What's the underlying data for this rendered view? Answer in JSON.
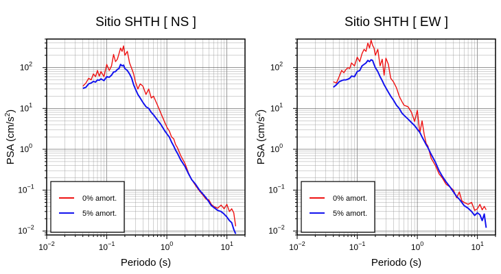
{
  "chart_data": [
    {
      "type": "line",
      "title": "Sitio SHTH [ NS ]",
      "xlabel": "Periodo (s)",
      "ylabel_main": "PSA (cm/s",
      "ylabel_sup": "2",
      "ylabel_tail": ")",
      "xscale": "log",
      "yscale": "log",
      "xlim": [
        0.01,
        20
      ],
      "ylim": [
        0.008,
        500
      ],
      "grid": true,
      "legend_position": "bottom-left",
      "x_ticks": [
        {
          "base": "10",
          "exp": "−2"
        },
        {
          "base": "10",
          "exp": "−1"
        },
        {
          "base": "10",
          "exp": "0"
        },
        {
          "base": "10",
          "exp": "1"
        }
      ],
      "y_ticks": [
        {
          "base": "10",
          "exp": "−2"
        },
        {
          "base": "10",
          "exp": "−1"
        },
        {
          "base": "10",
          "exp": "0"
        },
        {
          "base": "10",
          "exp": "1"
        },
        {
          "base": "10",
          "exp": "2"
        }
      ],
      "series": [
        {
          "name": "0% amort.",
          "color": "#ee1111",
          "x": [
            0.04,
            0.045,
            0.05,
            0.055,
            0.06,
            0.065,
            0.07,
            0.075,
            0.08,
            0.09,
            0.1,
            0.11,
            0.12,
            0.13,
            0.14,
            0.15,
            0.16,
            0.17,
            0.18,
            0.19,
            0.2,
            0.22,
            0.24,
            0.26,
            0.28,
            0.3,
            0.33,
            0.36,
            0.4,
            0.45,
            0.5,
            0.55,
            0.6,
            0.7,
            0.8,
            0.9,
            1.0,
            1.1,
            1.2,
            1.3,
            1.4,
            1.5,
            1.7,
            2.0,
            2.3,
            2.6,
            3.0,
            3.5,
            4.0,
            4.5,
            5.0,
            5.5,
            6.0,
            7.0,
            8.0,
            9.0,
            10.0,
            11.0,
            12.0,
            13.0,
            14.0
          ],
          "y": [
            35,
            42,
            55,
            50,
            70,
            60,
            85,
            62,
            80,
            60,
            120,
            85,
            110,
            210,
            140,
            160,
            220,
            300,
            250,
            340,
            200,
            250,
            130,
            95,
            70,
            45,
            30,
            40,
            35,
            22,
            30,
            18,
            20,
            12,
            7.5,
            5,
            3.5,
            2.8,
            2.0,
            1.8,
            1.3,
            1.1,
            0.7,
            0.45,
            0.26,
            0.18,
            0.13,
            0.095,
            0.075,
            0.06,
            0.058,
            0.045,
            0.04,
            0.036,
            0.043,
            0.035,
            0.045,
            0.03,
            0.035,
            0.028,
            0.013
          ]
        },
        {
          "name": "5% amort.",
          "color": "#1111ee",
          "x": [
            0.04,
            0.045,
            0.05,
            0.055,
            0.06,
            0.065,
            0.07,
            0.075,
            0.08,
            0.09,
            0.1,
            0.11,
            0.12,
            0.13,
            0.14,
            0.15,
            0.16,
            0.17,
            0.18,
            0.19,
            0.2,
            0.22,
            0.24,
            0.26,
            0.28,
            0.3,
            0.33,
            0.36,
            0.4,
            0.45,
            0.5,
            0.55,
            0.6,
            0.7,
            0.8,
            0.9,
            1.0,
            1.1,
            1.2,
            1.3,
            1.4,
            1.5,
            1.7,
            2.0,
            2.3,
            2.6,
            3.0,
            3.5,
            4.0,
            4.5,
            5.0,
            5.5,
            6.0,
            7.0,
            8.0,
            9.0,
            10.0,
            11.0,
            12.0,
            13.0,
            14.0
          ],
          "y": [
            31,
            33,
            40,
            42,
            46,
            44,
            50,
            49,
            53,
            48,
            60,
            58,
            65,
            78,
            80,
            90,
            95,
            120,
            110,
            115,
            95,
            85,
            70,
            55,
            38,
            30,
            22,
            18,
            14,
            11,
            10,
            8,
            7,
            5.2,
            4.0,
            3.0,
            2.4,
            2.0,
            1.5,
            1.2,
            0.95,
            0.8,
            0.55,
            0.38,
            0.25,
            0.18,
            0.14,
            0.1,
            0.08,
            0.065,
            0.052,
            0.042,
            0.038,
            0.032,
            0.03,
            0.026,
            0.022,
            0.018,
            0.016,
            0.011,
            0.0085
          ]
        }
      ]
    },
    {
      "type": "line",
      "title": "Sitio SHTH [ EW ]",
      "xlabel": "Periodo (s)",
      "ylabel_main": "PSA (cm/s",
      "ylabel_sup": "2",
      "ylabel_tail": ")",
      "xscale": "log",
      "yscale": "log",
      "xlim": [
        0.01,
        20
      ],
      "ylim": [
        0.008,
        500
      ],
      "grid": true,
      "legend_position": "bottom-left",
      "x_ticks": [
        {
          "base": "10",
          "exp": "−2"
        },
        {
          "base": "10",
          "exp": "−1"
        },
        {
          "base": "10",
          "exp": "0"
        },
        {
          "base": "10",
          "exp": "1"
        }
      ],
      "y_ticks": [
        {
          "base": "10",
          "exp": "−2"
        },
        {
          "base": "10",
          "exp": "−1"
        },
        {
          "base": "10",
          "exp": "0"
        },
        {
          "base": "10",
          "exp": "1"
        },
        {
          "base": "10",
          "exp": "2"
        }
      ],
      "series": [
        {
          "name": "0% amort.",
          "color": "#ee1111",
          "x": [
            0.04,
            0.045,
            0.05,
            0.055,
            0.06,
            0.065,
            0.07,
            0.075,
            0.08,
            0.09,
            0.1,
            0.11,
            0.12,
            0.13,
            0.14,
            0.15,
            0.16,
            0.17,
            0.18,
            0.19,
            0.2,
            0.22,
            0.24,
            0.26,
            0.28,
            0.3,
            0.33,
            0.36,
            0.4,
            0.45,
            0.5,
            0.55,
            0.6,
            0.7,
            0.8,
            0.9,
            1.0,
            1.1,
            1.2,
            1.3,
            1.4,
            1.5,
            1.7,
            2.0,
            2.3,
            2.6,
            3.0,
            3.5,
            4.0,
            4.5,
            5.0,
            5.5,
            6.0,
            7.0,
            8.0,
            9.0,
            10.0,
            11.0,
            12.0,
            13.0,
            14.0
          ],
          "y": [
            45,
            42,
            60,
            85,
            75,
            90,
            100,
            95,
            130,
            110,
            180,
            140,
            220,
            280,
            250,
            400,
            300,
            470,
            350,
            300,
            200,
            280,
            110,
            160,
            65,
            170,
            120,
            55,
            45,
            32,
            20,
            15,
            12,
            11,
            8,
            4.8,
            9,
            2.5,
            5,
            2.3,
            1.4,
            1.2,
            0.6,
            0.4,
            0.25,
            0.2,
            0.14,
            0.12,
            0.1,
            0.065,
            0.09,
            0.055,
            0.05,
            0.045,
            0.05,
            0.032,
            0.035,
            0.045,
            0.033,
            0.04,
            0.033
          ]
        },
        {
          "name": "5% amort.",
          "color": "#1111ee",
          "x": [
            0.04,
            0.045,
            0.05,
            0.055,
            0.06,
            0.065,
            0.07,
            0.075,
            0.08,
            0.09,
            0.1,
            0.11,
            0.12,
            0.13,
            0.14,
            0.15,
            0.16,
            0.17,
            0.18,
            0.19,
            0.2,
            0.22,
            0.24,
            0.26,
            0.28,
            0.3,
            0.33,
            0.36,
            0.4,
            0.45,
            0.5,
            0.55,
            0.6,
            0.7,
            0.8,
            0.9,
            1.0,
            1.1,
            1.2,
            1.3,
            1.4,
            1.5,
            1.7,
            2.0,
            2.3,
            2.6,
            3.0,
            3.5,
            4.0,
            4.5,
            5.0,
            5.5,
            6.0,
            7.0,
            8.0,
            9.0,
            10.0,
            11.0,
            12.0,
            13.0,
            14.0
          ],
          "y": [
            33,
            38,
            45,
            48,
            50,
            50,
            52,
            55,
            62,
            60,
            80,
            85,
            110,
            120,
            130,
            150,
            140,
            155,
            150,
            120,
            100,
            80,
            60,
            48,
            38,
            32,
            25,
            20,
            16,
            12,
            10,
            7.8,
            6.8,
            5.5,
            4.5,
            3.8,
            3.1,
            2.6,
            2.0,
            1.6,
            1.3,
            1.1,
            0.75,
            0.48,
            0.3,
            0.22,
            0.16,
            0.12,
            0.09,
            0.07,
            0.06,
            0.05,
            0.042,
            0.036,
            0.03,
            0.024,
            0.028,
            0.025,
            0.018,
            0.026,
            0.012
          ]
        }
      ]
    }
  ]
}
